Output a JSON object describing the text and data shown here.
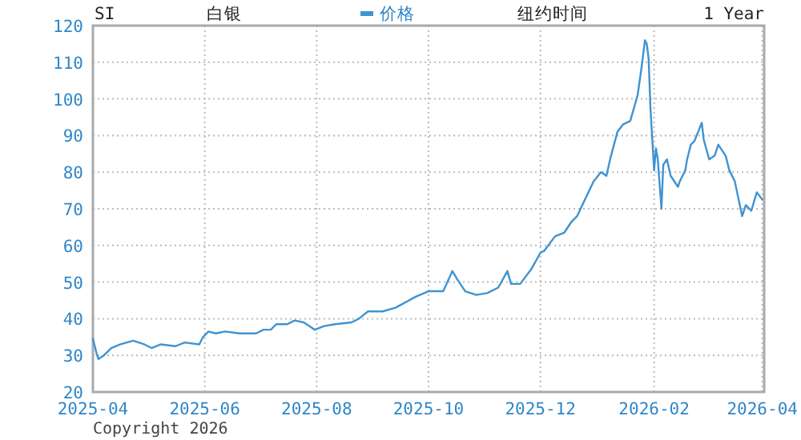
{
  "chart_data": {
    "type": "line",
    "title": "白银",
    "annotations": [
      "SI",
      "纽约时间",
      "1 Year",
      "Copyright 2026"
    ],
    "x": [
      "2025-04-01",
      "2025-04-03",
      "2025-04-04",
      "2025-04-07",
      "2025-04-11",
      "2025-04-16",
      "2025-04-23",
      "2025-04-29",
      "2025-05-03",
      "2025-05-08",
      "2025-05-16",
      "2025-05-21",
      "2025-05-29",
      "2025-05-31",
      "2025-06-03",
      "2025-06-07",
      "2025-06-12",
      "2025-06-20",
      "2025-06-29",
      "2025-07-03",
      "2025-07-07",
      "2025-07-10",
      "2025-07-16",
      "2025-07-20",
      "2025-07-25",
      "2025-07-31",
      "2025-08-05",
      "2025-08-11",
      "2025-08-20",
      "2025-08-24",
      "2025-08-29",
      "2025-09-06",
      "2025-09-13",
      "2025-09-24",
      "2025-10-01",
      "2025-10-09",
      "2025-10-14",
      "2025-10-17",
      "2025-10-21",
      "2025-10-27",
      "2025-11-02",
      "2025-11-08",
      "2025-11-13",
      "2025-11-15",
      "2025-11-20",
      "2025-11-26",
      "2025-12-01",
      "2025-12-03",
      "2025-12-09",
      "2025-12-14",
      "2025-12-18",
      "2025-12-21",
      "2025-12-30",
      "2026-01-03",
      "2026-01-06",
      "2026-01-08",
      "2026-01-12",
      "2026-01-15",
      "2026-01-19",
      "2026-01-23",
      "2026-01-25",
      "2026-01-27",
      "2026-01-28",
      "2026-01-29",
      "2026-01-30",
      "2026-02-01",
      "2026-02-02",
      "2026-02-03",
      "2026-02-05",
      "2026-02-06",
      "2026-02-08",
      "2026-02-10",
      "2026-02-14",
      "2026-02-15",
      "2026-02-18",
      "2026-02-19",
      "2026-02-21",
      "2026-02-23",
      "2026-02-27",
      "2026-02-28",
      "2026-03-03",
      "2026-03-06",
      "2026-03-08",
      "2026-03-12",
      "2026-03-14",
      "2026-03-17",
      "2026-03-21",
      "2026-03-23",
      "2026-03-26",
      "2026-03-29",
      "2026-04-01"
    ],
    "series": [
      {
        "name": "价格",
        "color": "#3f93d2",
        "values": [
          34.5,
          30.5,
          29,
          30,
          32,
          33,
          34,
          33,
          32,
          33,
          32.5,
          33.5,
          33,
          35,
          36.5,
          36,
          36.5,
          36,
          36,
          37,
          37,
          38.5,
          38.5,
          39.5,
          39,
          37,
          38,
          38.5,
          39,
          40,
          42,
          42,
          43,
          46,
          47.5,
          47.5,
          53,
          50.5,
          47.5,
          46.5,
          47,
          48.5,
          53,
          49.5,
          49.5,
          53.5,
          58,
          58.5,
          62.5,
          63.5,
          66.5,
          68,
          77.5,
          80,
          79,
          83.5,
          91,
          93,
          94,
          101,
          108,
          116,
          115,
          111,
          97.5,
          80.5,
          86.5,
          83.5,
          70,
          82,
          83.5,
          79,
          76,
          77.5,
          80.5,
          83.5,
          87.5,
          88.5,
          93.5,
          89,
          83.5,
          84.5,
          87.5,
          84.5,
          80.5,
          77.5,
          68,
          71,
          69.5,
          74.5,
          72.5
        ]
      }
    ],
    "xlim": [
      "2025-04-01",
      "2026-04-02"
    ],
    "ylim": [
      20,
      120
    ],
    "xticks": [
      "2025-04",
      "2025-06",
      "2025-08",
      "2025-10",
      "2025-12",
      "2026-02",
      "2026-04"
    ],
    "yticks": [
      20,
      30,
      40,
      50,
      60,
      70,
      80,
      90,
      100,
      110,
      120
    ],
    "grid": true,
    "legend": "top",
    "marker": "none",
    "line_style": "solid"
  }
}
